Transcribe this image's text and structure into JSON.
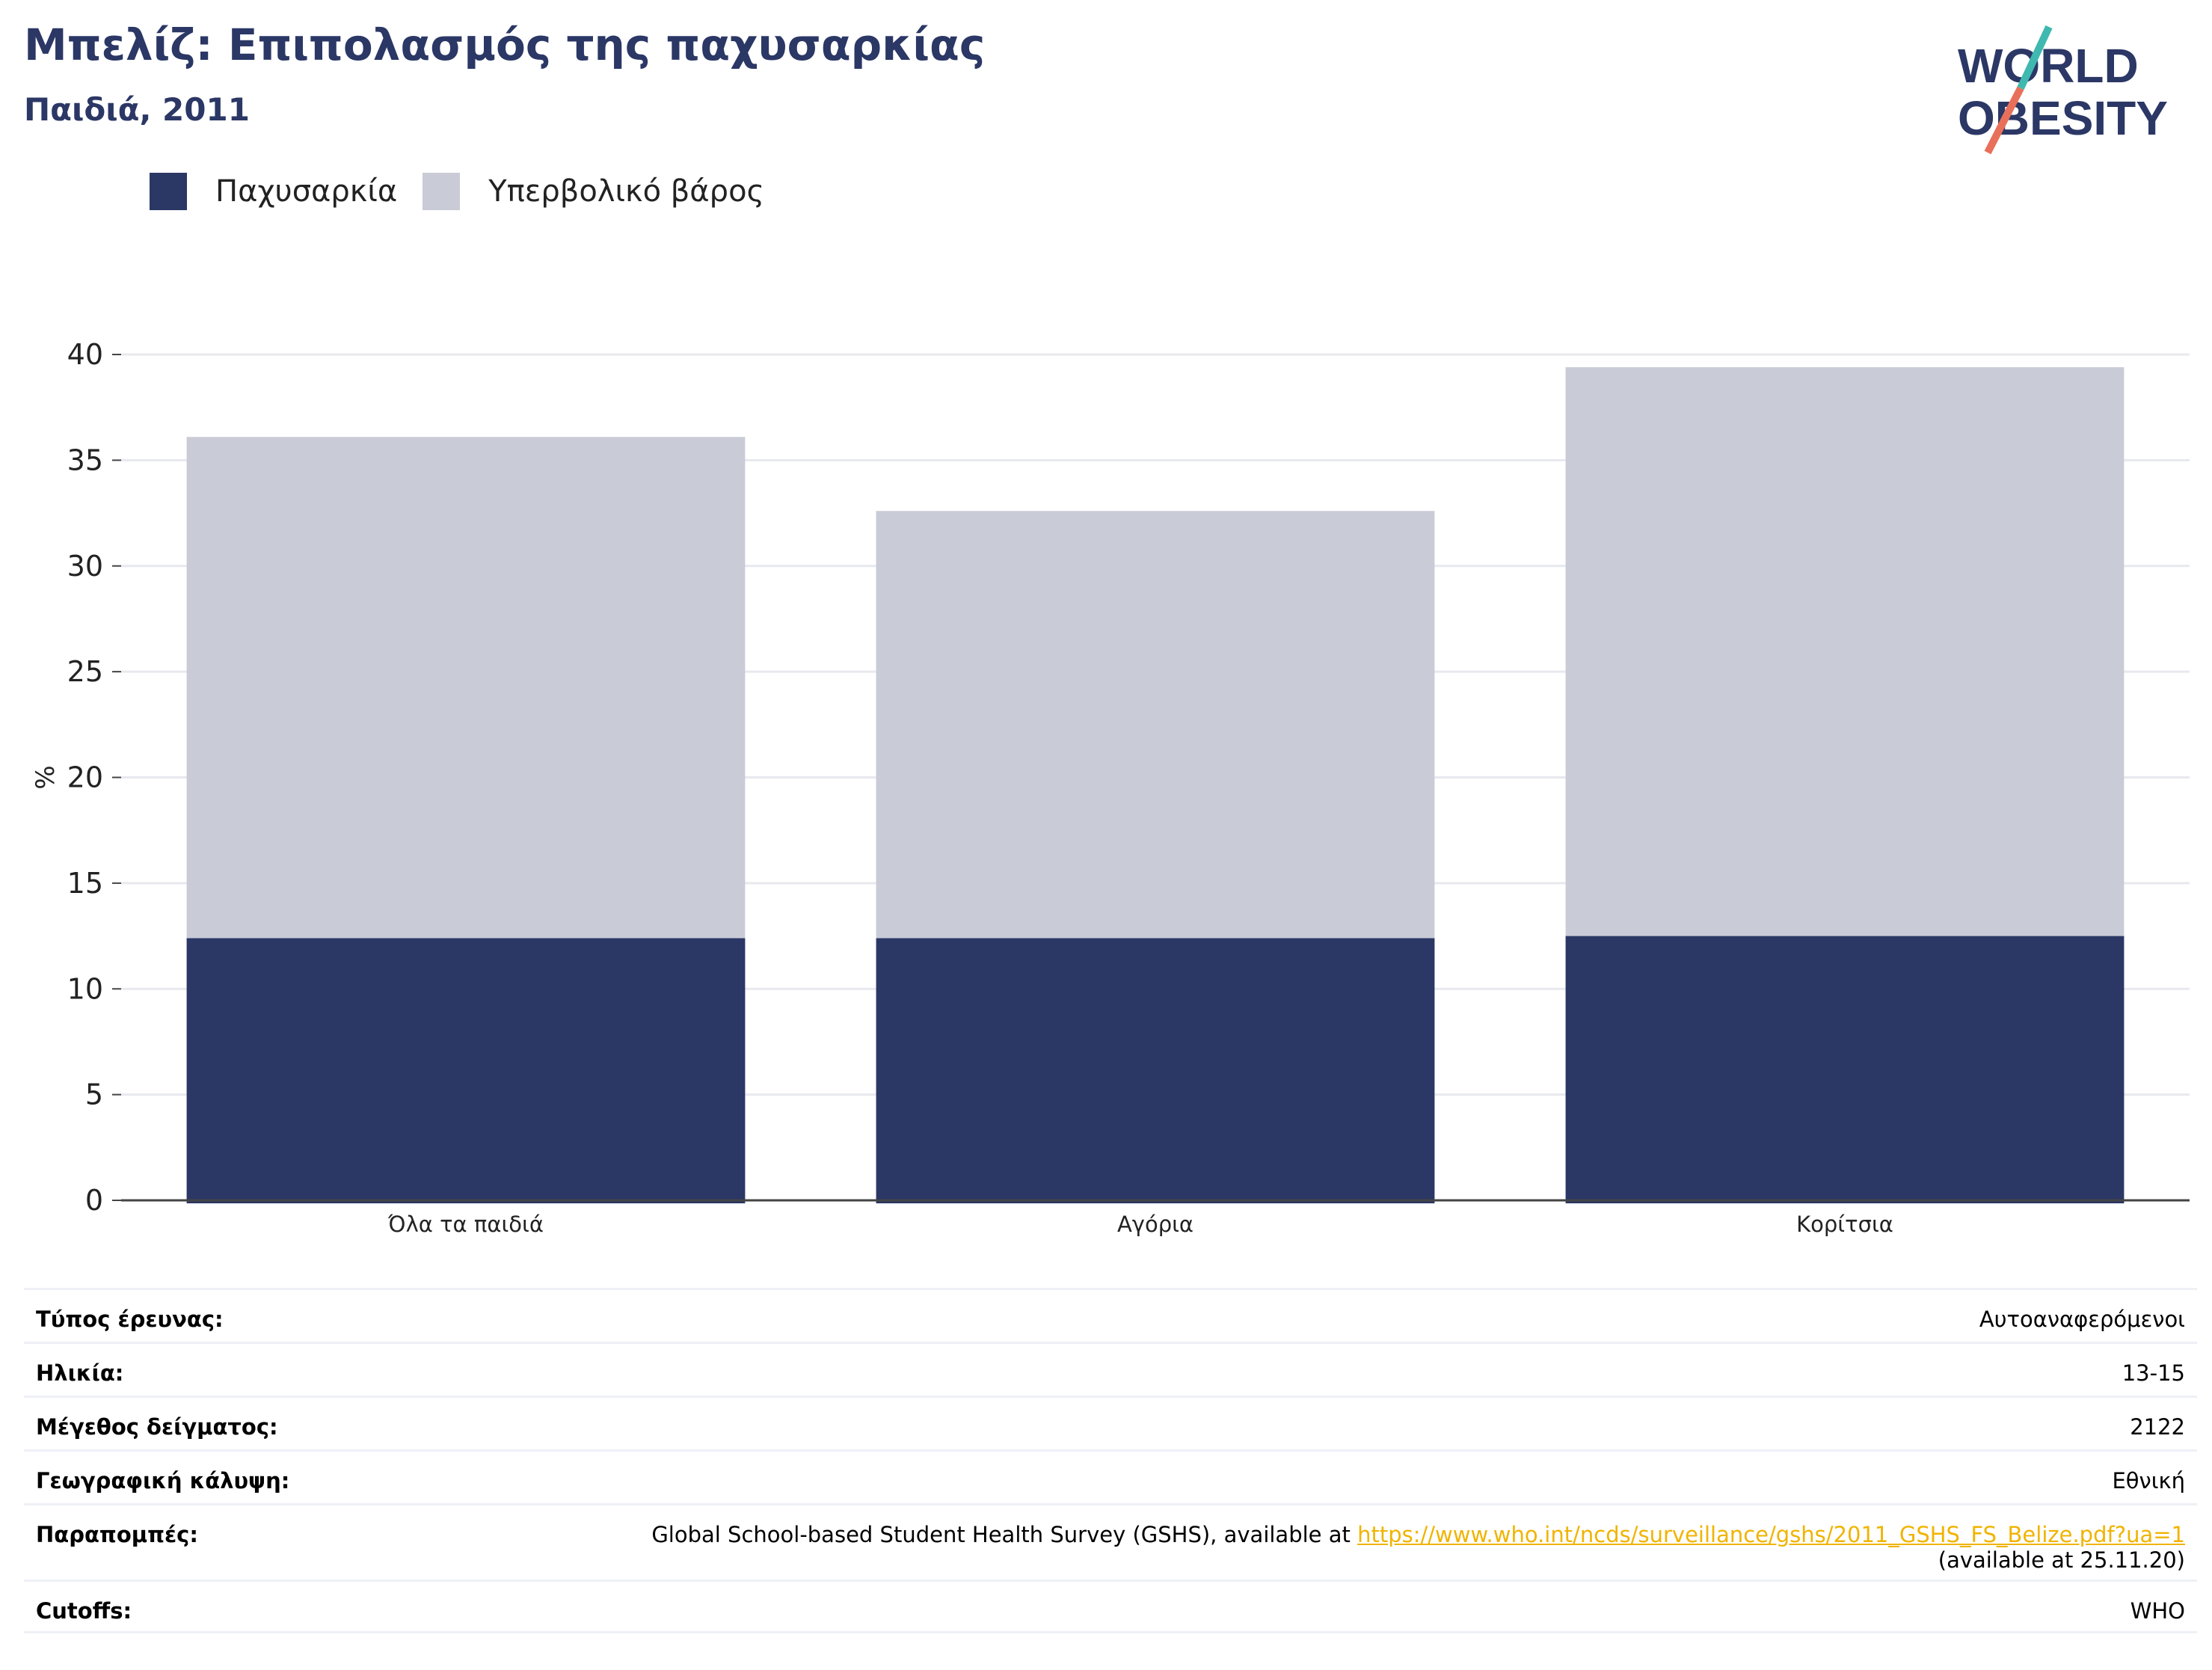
{
  "header": {
    "title": "Μπελίζ: Επιπολασμός της παχυσαρκίας",
    "subtitle": "Παιδιά, 2011"
  },
  "logo": {
    "line1": "WORLD",
    "line2": "OBESITY"
  },
  "colors": {
    "obesity": "#2b3765",
    "overweight": "#c9cbd7",
    "accent_teal": "#3fb8b0",
    "accent_red": "#e8705a",
    "link": "#f0b400"
  },
  "chart_data": {
    "type": "bar",
    "stacked": true,
    "categories": [
      "Όλα τα παιδιά",
      "Αγόρια",
      "Κορίτσια"
    ],
    "series": [
      {
        "name": "Παχυσαρκία",
        "values": [
          12.4,
          12.4,
          12.5
        ]
      },
      {
        "name": "Υπερβολικό βάρος",
        "values": [
          23.7,
          20.2,
          26.9
        ]
      }
    ],
    "ylabel": "%",
    "xlabel": "",
    "ylim": [
      0,
      40
    ],
    "yticks": [
      0,
      5,
      10,
      15,
      20,
      25,
      30,
      35,
      40
    ],
    "grid": true,
    "legend": "top-left"
  },
  "info": [
    {
      "label": "Τύπος έρευνας:",
      "value": "Αυτοαναφερόμενοι"
    },
    {
      "label": "Ηλικία:",
      "value": "13-15"
    },
    {
      "label": "Μέγεθος δείγματος:",
      "value": "2122"
    },
    {
      "label": "Γεωγραφική κάλυψη:",
      "value": "Εθνική"
    },
    {
      "label": "Παραπομπές:",
      "value": "Global School-based Student Health Survey (GSHS), available at ",
      "link": "https://www.who.int/ncds/surveillance/gshs/2011_GSHS_FS_Belize.pdf?ua=1",
      "value_suffix": "(available at 25.11.20)"
    },
    {
      "label": "Cutoffs:",
      "value": "WHO"
    }
  ]
}
